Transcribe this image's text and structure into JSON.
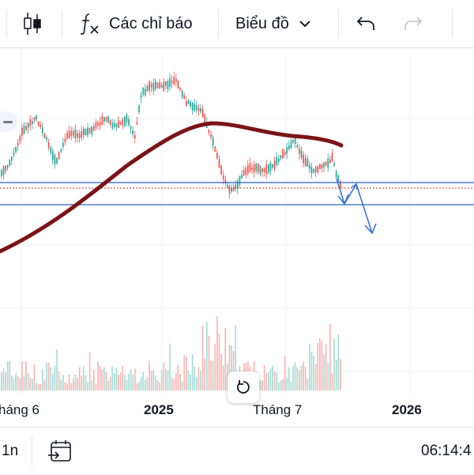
{
  "toolbar": {
    "indicators_label": "Các chỉ báo",
    "chart_type_label": "Biểu đồ"
  },
  "icons": {
    "candles": "candlestick-icon",
    "function": "function-fx-icon",
    "chevron": "chevron-down-icon",
    "undo": "undo-icon",
    "redo": "redo-icon",
    "reset": "reset-chart-icon",
    "calendar": "calendar-goto-icon"
  },
  "colors": {
    "up": "#26a69a",
    "down": "#ef5350",
    "moving_average": "#7b1416",
    "trendline": "#2f64c8",
    "drawing_arrow": "#3b73d4",
    "dotted_level": "#c0392b"
  },
  "chart_data": {
    "type": "candlestick",
    "x_axis_labels": [
      "háng 6",
      "2025",
      "Tháng 7",
      "2026"
    ],
    "bold_labels": [
      "2025",
      "2026"
    ],
    "horizontal_levels": [
      "upper support line",
      "dotted last price line",
      "lower support line"
    ],
    "overlays": [
      "moving average curve",
      "projected down arrow"
    ],
    "volume_panel": true
  },
  "bottombar": {
    "interval_label": "1n",
    "time_label": "06:14:4"
  }
}
